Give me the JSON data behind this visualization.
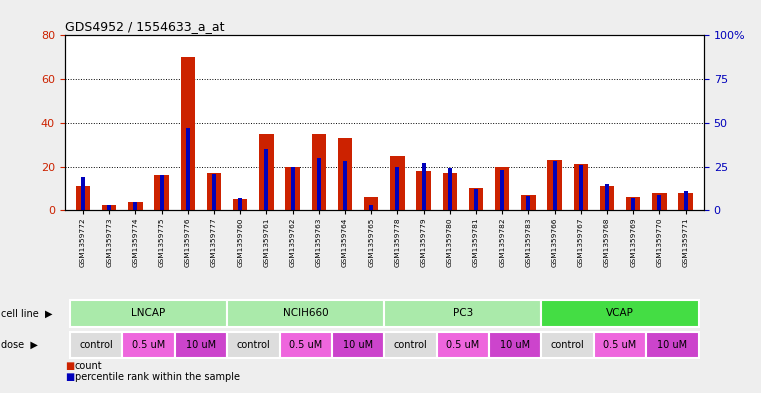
{
  "title": "GDS4952 / 1554633_a_at",
  "samples": [
    "GSM1359772",
    "GSM1359773",
    "GSM1359774",
    "GSM1359775",
    "GSM1359776",
    "GSM1359777",
    "GSM1359760",
    "GSM1359761",
    "GSM1359762",
    "GSM1359763",
    "GSM1359764",
    "GSM1359765",
    "GSM1359778",
    "GSM1359779",
    "GSM1359780",
    "GSM1359781",
    "GSM1359782",
    "GSM1359783",
    "GSM1359766",
    "GSM1359767",
    "GSM1359768",
    "GSM1359769",
    "GSM1359770",
    "GSM1359771"
  ],
  "red_values": [
    11,
    2.5,
    4,
    16,
    70,
    17,
    5,
    35,
    20,
    35,
    33,
    6,
    25,
    18,
    17,
    10,
    20,
    7,
    23,
    21,
    11,
    6,
    8,
    8
  ],
  "blue_pct": [
    19,
    3,
    5,
    20,
    47,
    21,
    7,
    35,
    25,
    30,
    28,
    3,
    25,
    27,
    24,
    12,
    23,
    8,
    28,
    26,
    15,
    7,
    9,
    11
  ],
  "cell_lines": [
    {
      "label": "LNCAP",
      "start": 0,
      "end": 6,
      "color": "#aaeaaa"
    },
    {
      "label": "NCIH660",
      "start": 6,
      "end": 12,
      "color": "#aaeaaa"
    },
    {
      "label": "PC3",
      "start": 12,
      "end": 18,
      "color": "#aaeaaa"
    },
    {
      "label": "VCAP",
      "start": 18,
      "end": 24,
      "color": "#44dd44"
    }
  ],
  "doses": [
    {
      "label": "control",
      "start": 0,
      "end": 2,
      "color": "#dddddd"
    },
    {
      "label": "0.5 uM",
      "start": 2,
      "end": 4,
      "color": "#ee66dd"
    },
    {
      "label": "10 uM",
      "start": 4,
      "end": 6,
      "color": "#cc44cc"
    },
    {
      "label": "control",
      "start": 6,
      "end": 8,
      "color": "#dddddd"
    },
    {
      "label": "0.5 uM",
      "start": 8,
      "end": 10,
      "color": "#ee66dd"
    },
    {
      "label": "10 uM",
      "start": 10,
      "end": 12,
      "color": "#cc44cc"
    },
    {
      "label": "control",
      "start": 12,
      "end": 14,
      "color": "#dddddd"
    },
    {
      "label": "0.5 uM",
      "start": 14,
      "end": 16,
      "color": "#ee66dd"
    },
    {
      "label": "10 uM",
      "start": 16,
      "end": 18,
      "color": "#cc44cc"
    },
    {
      "label": "control",
      "start": 18,
      "end": 20,
      "color": "#dddddd"
    },
    {
      "label": "0.5 uM",
      "start": 20,
      "end": 22,
      "color": "#ee66dd"
    },
    {
      "label": "10 uM",
      "start": 22,
      "end": 24,
      "color": "#cc44cc"
    }
  ],
  "ylim_left": [
    0,
    80
  ],
  "ylim_right": [
    0,
    100
  ],
  "yticks_left": [
    0,
    20,
    40,
    60,
    80
  ],
  "yticks_right": [
    0,
    25,
    50,
    75,
    100
  ],
  "ytick_labels_right": [
    "0",
    "25",
    "50",
    "75",
    "100%"
  ],
  "bar_color_red": "#cc2200",
  "bar_color_blue": "#0000bb",
  "bg_color": "#eeeeee",
  "plot_bg": "#ffffff",
  "gridline_y": [
    20,
    40,
    60,
    80
  ]
}
